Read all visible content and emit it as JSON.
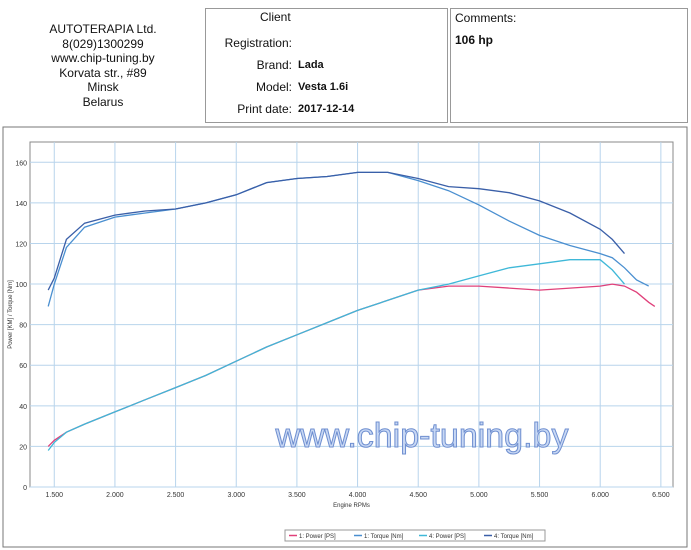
{
  "header": {
    "company": [
      "AUTOTERAPIA Ltd.",
      "8(029)1300299",
      "www.chip-tuning.by",
      "Korvata str., #89",
      "Minsk",
      "Belarus"
    ],
    "client_title": "Client",
    "fields": [
      {
        "label": "Registration:",
        "value": null
      },
      {
        "label": "Brand:",
        "value": "Lada"
      },
      {
        "label": "Model:",
        "value": "Vesta 1.6i"
      },
      {
        "label": "Print date:",
        "value": "2017-12-14"
      }
    ],
    "comments_title": "Comments:",
    "comments": "106 hp"
  },
  "chart_data": {
    "type": "line",
    "watermark": "www.chip-tuning.by",
    "x_label": "Engine RPMs",
    "y_label": "Power [KM] / Torque [Nm]",
    "grid": true,
    "legend": "bottom",
    "x": [
      1450,
      1500,
      1600,
      1750,
      2000,
      2250,
      2500,
      2750,
      3000,
      3250,
      3500,
      3750,
      4000,
      4250,
      4500,
      4750,
      5000,
      5250,
      5500,
      5750,
      6000,
      6100,
      6200,
      6300,
      6400,
      6450
    ],
    "xlim": [
      1300,
      6600
    ],
    "xticks": [
      {
        "value": 1500,
        "label": "1.500"
      },
      {
        "value": 2000,
        "label": "2.000"
      },
      {
        "value": 2500,
        "label": "2.500"
      },
      {
        "value": 3000,
        "label": "3.000"
      },
      {
        "value": 3500,
        "label": "3.500"
      },
      {
        "value": 4000,
        "label": "4.000"
      },
      {
        "value": 4500,
        "label": "4.500"
      },
      {
        "value": 5000,
        "label": "5.000"
      },
      {
        "value": 5500,
        "label": "5.500"
      },
      {
        "value": 6000,
        "label": "6.000"
      },
      {
        "value": 6500,
        "label": "6.500"
      }
    ],
    "ylim": [
      0,
      170
    ],
    "yticks": [
      0,
      20,
      40,
      60,
      80,
      100,
      120,
      140,
      160
    ],
    "series": [
      {
        "name": "1: Power [PS]",
        "color": "#e0407a",
        "values": [
          20,
          23,
          27,
          31,
          37,
          43,
          49,
          55,
          62,
          69,
          75,
          81,
          87,
          92,
          97,
          99,
          99,
          98,
          97,
          98,
          99,
          100,
          99,
          96,
          91,
          89
        ]
      },
      {
        "name": "1: Torque [Nm]",
        "color": "#4a8fd0",
        "values": [
          89,
          100,
          118,
          128,
          133,
          135,
          137,
          140,
          144,
          150,
          152,
          153,
          155,
          155,
          151,
          146,
          139,
          131,
          124,
          119,
          115,
          113,
          108,
          102,
          99,
          null
        ]
      },
      {
        "name": "4: Power [PS]",
        "color": "#3fb8d8",
        "values": [
          18,
          22,
          27,
          31,
          37,
          43,
          49,
          55,
          62,
          69,
          75,
          81,
          87,
          92,
          97,
          100,
          104,
          108,
          110,
          112,
          112,
          107,
          100,
          null,
          null,
          null
        ]
      },
      {
        "name": "4: Torque [Nm]",
        "color": "#3a5fa8",
        "values": [
          97,
          103,
          122,
          130,
          134,
          136,
          137,
          140,
          144,
          150,
          152,
          153,
          155,
          155,
          152,
          148,
          147,
          145,
          141,
          135,
          127,
          122,
          115,
          null,
          null,
          null
        ]
      }
    ]
  }
}
